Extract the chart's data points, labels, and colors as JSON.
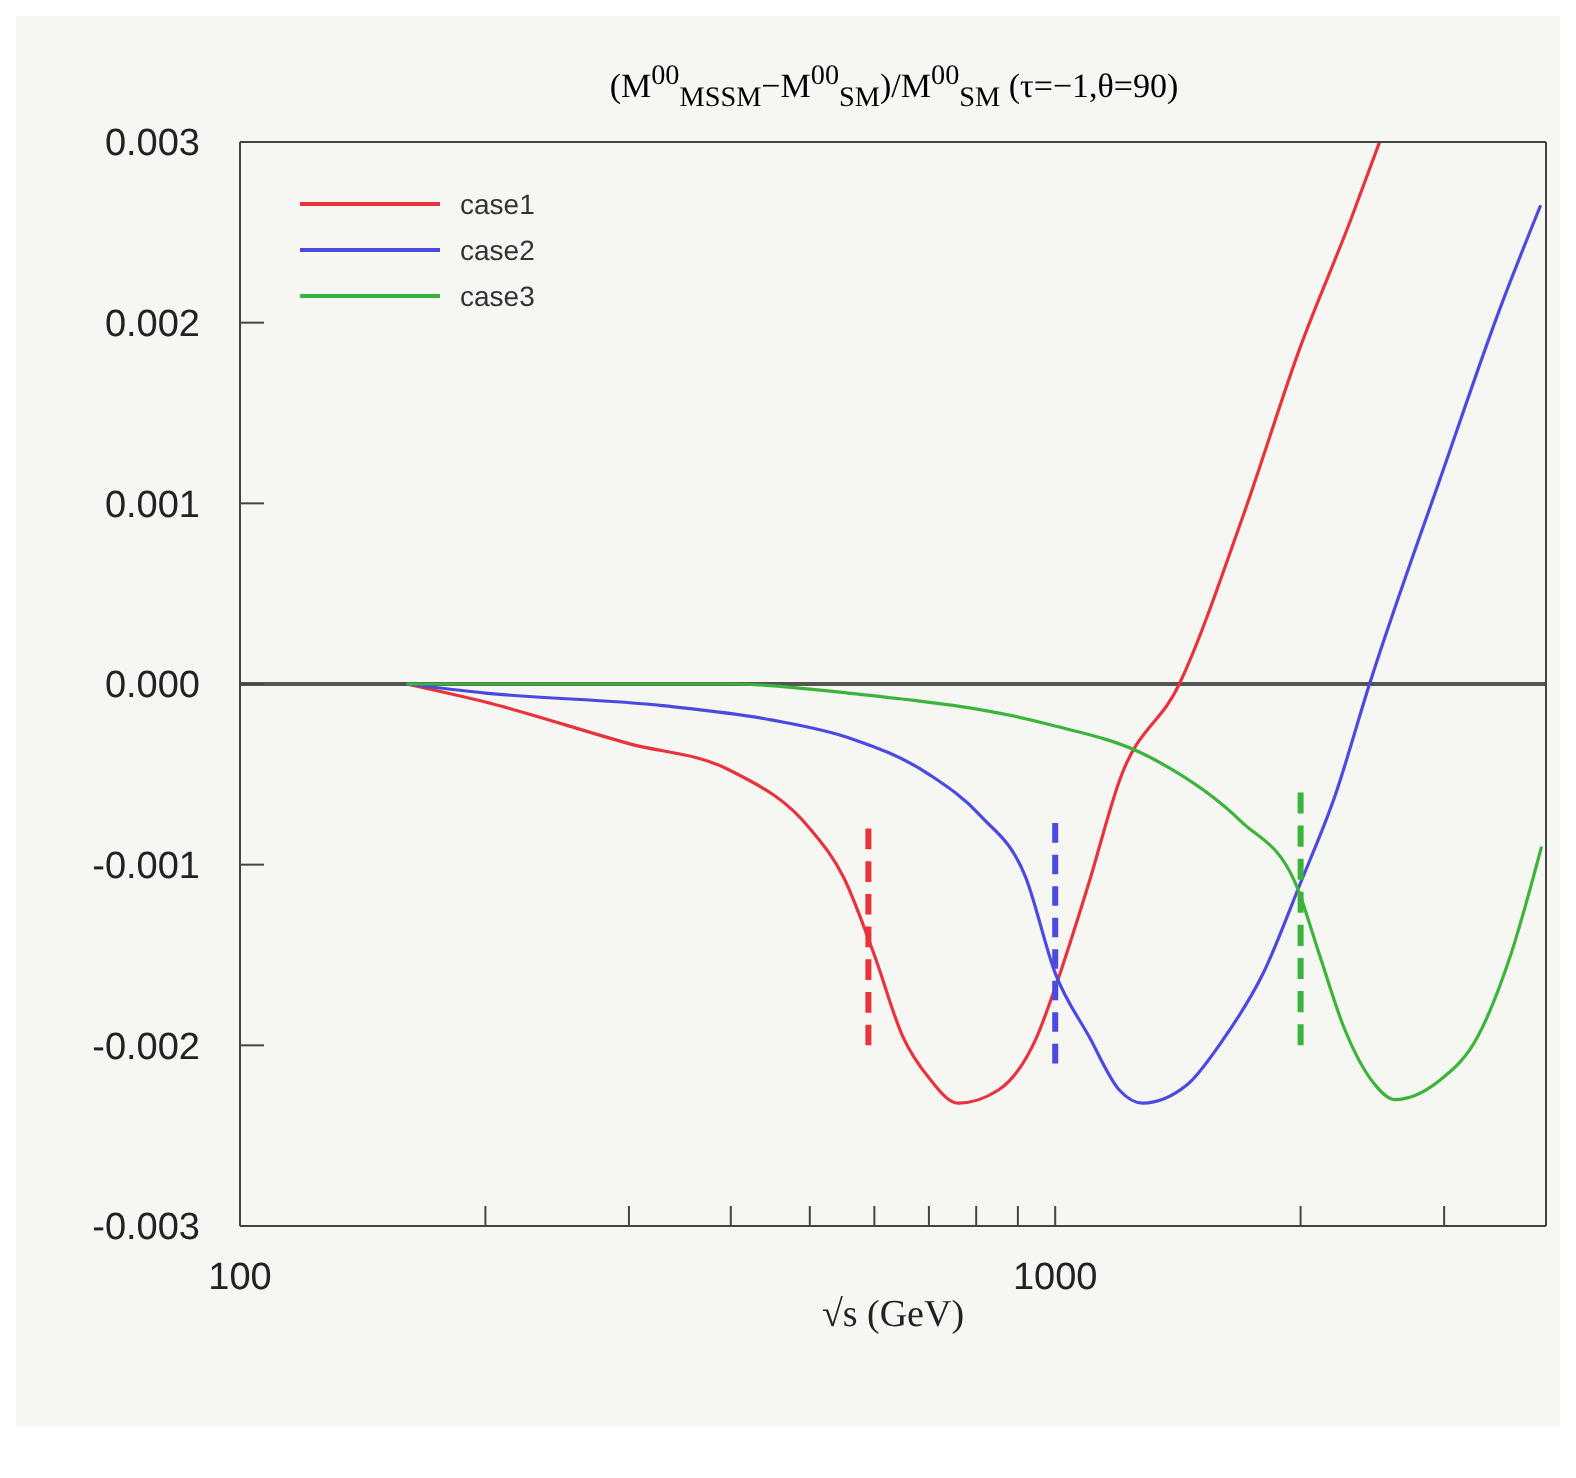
{
  "chart_data": {
    "type": "line",
    "title": "(M$^{00}$$_{MSSM}$−M$^{00}$$_{SM}$)/M$^{00}$$_{SM}$   (τ=−1,θ=90)",
    "xlabel": "√s  (GeV)",
    "log": "x",
    "legend": "top left",
    "xlim": [
      100,
      4000
    ],
    "ylim": [
      -0.003,
      0.003
    ],
    "xticks": [
      100,
      {
        "value": 200,
        "label": null
      },
      {
        "value": 300,
        "label": null
      },
      {
        "value": 400,
        "label": null
      },
      {
        "value": 500,
        "label": null
      },
      {
        "value": 600,
        "label": null
      },
      {
        "value": 700,
        "label": null
      },
      {
        "value": 800,
        "label": null
      },
      {
        "value": 900,
        "label": null
      },
      1000,
      {
        "value": 2000,
        "label": null
      },
      {
        "value": 3000,
        "label": null
      }
    ],
    "yticks": [
      {
        "value": 0.003,
        "label": "0.003"
      },
      {
        "value": 0.002,
        "label": "0.002"
      },
      {
        "value": 0.001,
        "label": "0.001"
      },
      {
        "value": 0,
        "label": "0.000"
      },
      {
        "value": -0.001,
        "label": "-0.001"
      },
      {
        "value": -0.002,
        "label": "-0.002"
      },
      {
        "value": -0.003,
        "label": "-0.003"
      }
    ],
    "ref_lines": [
      {
        "axis": "y",
        "value": 0,
        "color": "#555555"
      }
    ],
    "series": [
      {
        "name": "case1",
        "color": "#e8323c",
        "x": [
          160,
          200,
          300,
          400,
          500,
          550,
          600,
          650,
          700,
          760,
          850,
          950,
          1000,
          1100,
          1200,
          1420,
          1700,
          2000,
          2300,
          2500
        ],
        "values": [
          0,
          -0.0001,
          -0.00033,
          -0.00048,
          -0.0008,
          -0.00107,
          -0.0015,
          -0.00195,
          -0.00218,
          -0.00232,
          -0.00225,
          -0.00195,
          -0.00168,
          -0.0011,
          -0.00053,
          0,
          0.00093,
          0.00187,
          0.00256,
          0.003
        ]
      },
      {
        "name": "case2",
        "color": "#4a4ae0",
        "x": [
          160,
          200,
          330,
          450,
          560,
          700,
          810,
          920,
          1000,
          1100,
          1200,
          1280,
          1450,
          1600,
          1800,
          2000,
          2200,
          2430,
          3000,
          3500,
          3940
        ],
        "values": [
          0,
          -5e-05,
          -0.00012,
          -0.0002,
          -0.0003,
          -0.0005,
          -0.00073,
          -0.00107,
          -0.0016,
          -0.00195,
          -0.00225,
          -0.00232,
          -0.00222,
          -0.00198,
          -0.0016,
          -0.0011,
          -0.00063,
          0,
          0.0012,
          0.00206,
          0.00265
        ]
      },
      {
        "name": "case3",
        "color": "#3cb43c",
        "x": [
          160,
          300,
          400,
          557,
          975,
          1300,
          1690,
          1970,
          2110,
          2260,
          2450,
          2610,
          2950,
          3300,
          3620,
          3950
        ],
        "values": [
          0,
          0,
          0,
          -5e-05,
          -0.00022,
          -0.0004,
          -0.00076,
          -0.0011,
          -0.0015,
          -0.0019,
          -0.0022,
          -0.0023,
          -0.0022,
          -0.00195,
          -0.0015,
          -0.0009
        ]
      },
      {
        "color": "#e8323c",
        "line_style": "dashed",
        "x": [
          590,
          590
        ],
        "values": [
          -0.0008,
          -0.002
        ]
      },
      {
        "color": "#4a4ae0",
        "line_style": "dashed",
        "x": [
          1000,
          1000
        ],
        "values": [
          -0.00077,
          -0.0021
        ]
      },
      {
        "color": "#3cb43c",
        "line_style": "dashed",
        "x": [
          2000,
          2000
        ],
        "values": [
          -0.0006,
          -0.002
        ]
      }
    ]
  }
}
